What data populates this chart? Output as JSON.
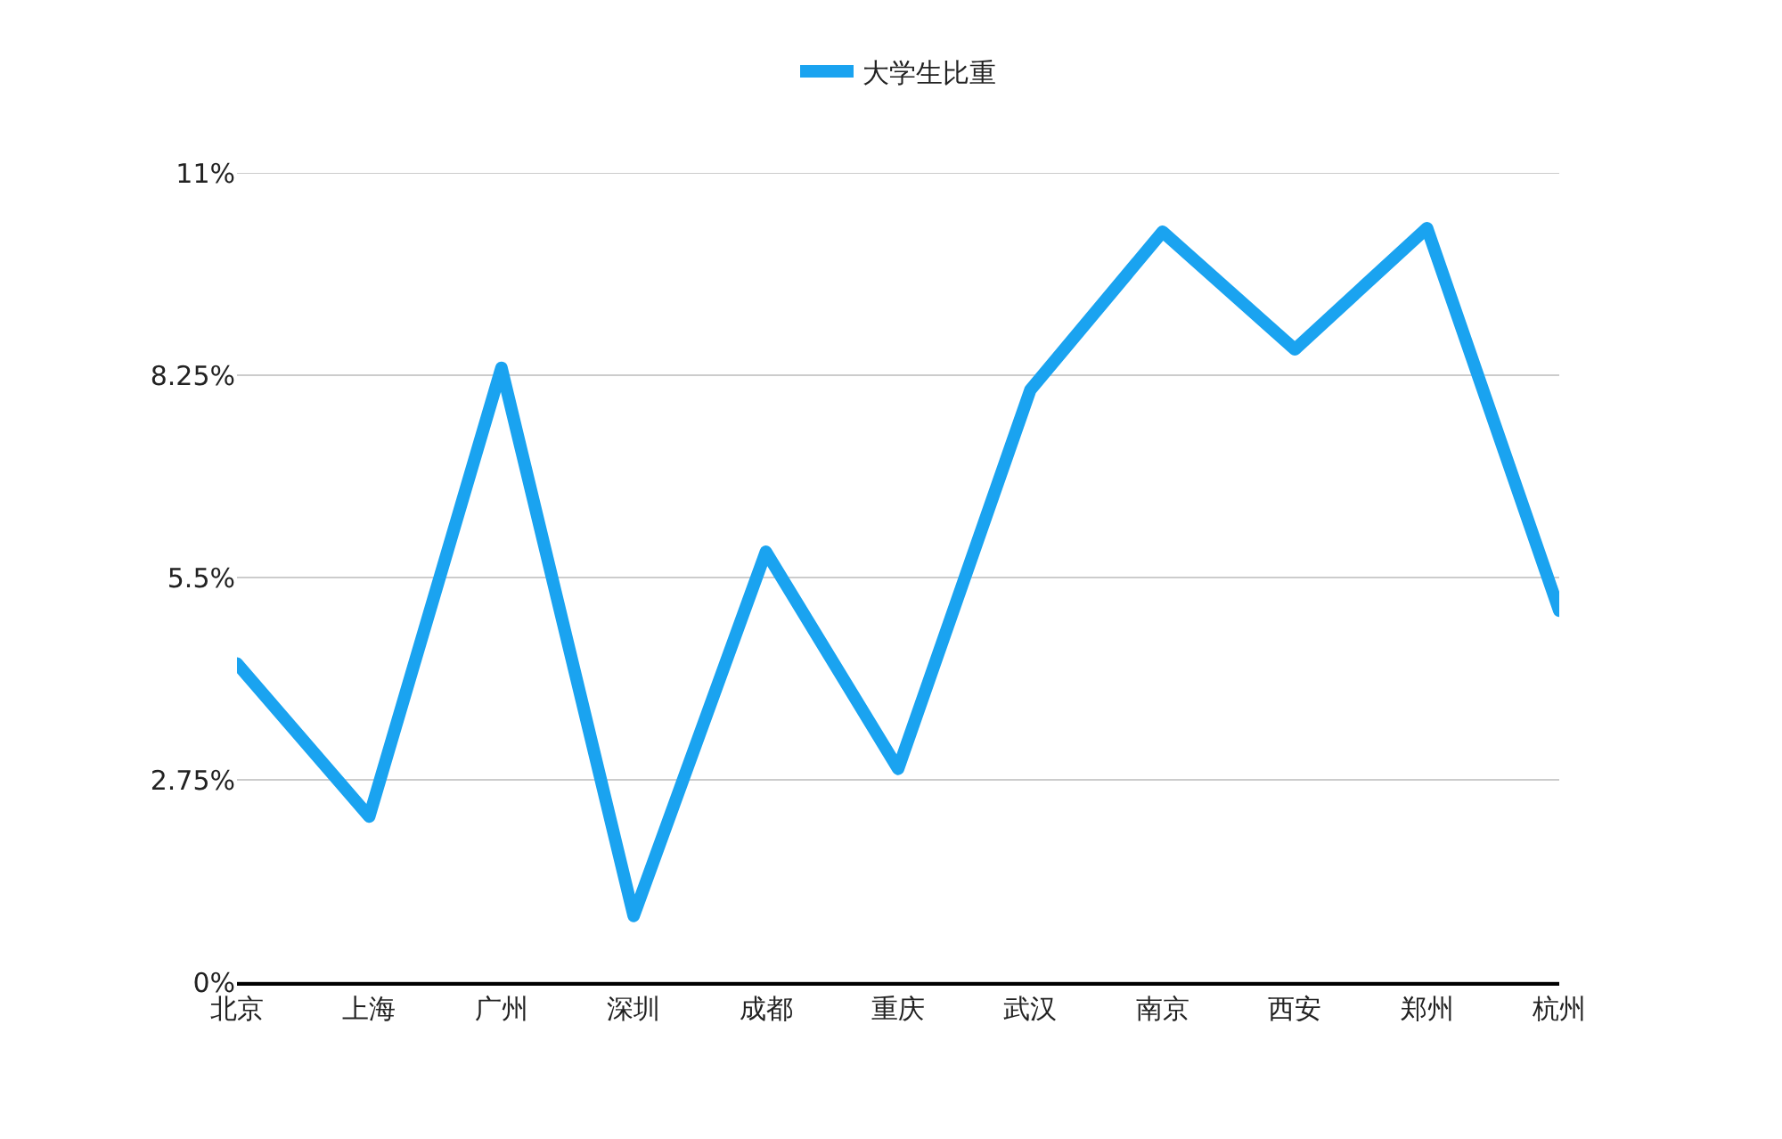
{
  "chart_data": {
    "type": "line",
    "categories": [
      "北京",
      "上海",
      "广州",
      "深圳",
      "成都",
      "重庆",
      "武汉",
      "南京",
      "西安",
      "郑州",
      "杭州"
    ],
    "series": [
      {
        "name": "大学生比重",
        "color": "#1aa3f0",
        "values": [
          4.33,
          2.25,
          8.35,
          0.9,
          5.85,
          2.9,
          8.05,
          10.2,
          8.6,
          10.25,
          5.05
        ]
      }
    ],
    "ylim": [
      0,
      11
    ],
    "yticks": [
      {
        "value": 0,
        "label": "0%"
      },
      {
        "value": 2.75,
        "label": "2.75%"
      },
      {
        "value": 5.5,
        "label": "5.5%"
      },
      {
        "value": 8.25,
        "label": "8.25%"
      },
      {
        "value": 11,
        "label": "11%"
      }
    ],
    "grid": "y",
    "legend": "top",
    "marker": "none",
    "line_style": "solid"
  }
}
